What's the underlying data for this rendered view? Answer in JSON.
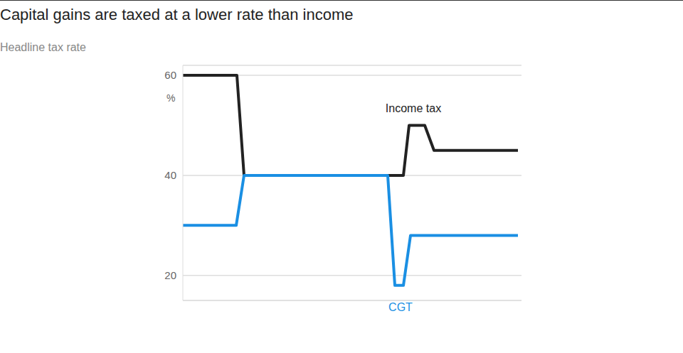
{
  "chart_data": {
    "type": "line",
    "title": "Capital gains are taxed at a lower rate than income",
    "subtitle": "Headline tax rate",
    "ylabel": "%",
    "xlim": [
      0,
      476
    ],
    "xticks": [],
    "ylim": [
      15,
      62
    ],
    "yticks": [
      20,
      40,
      60
    ],
    "grid": true,
    "tick_labels": "y",
    "series": [
      {
        "name": "Income tax",
        "color": "#222222",
        "x": [
          0,
          76,
          86,
          310,
          318,
          340,
          353,
          471
        ],
        "values": [
          60,
          60,
          40,
          40,
          50,
          50,
          45,
          45
        ]
      },
      {
        "name": "CGT",
        "color": "#1a8fe3",
        "x": [
          0,
          75,
          86,
          288,
          298,
          310,
          320,
          471
        ],
        "values": [
          30,
          30,
          40,
          40,
          18,
          18,
          28,
          28
        ]
      }
    ]
  }
}
